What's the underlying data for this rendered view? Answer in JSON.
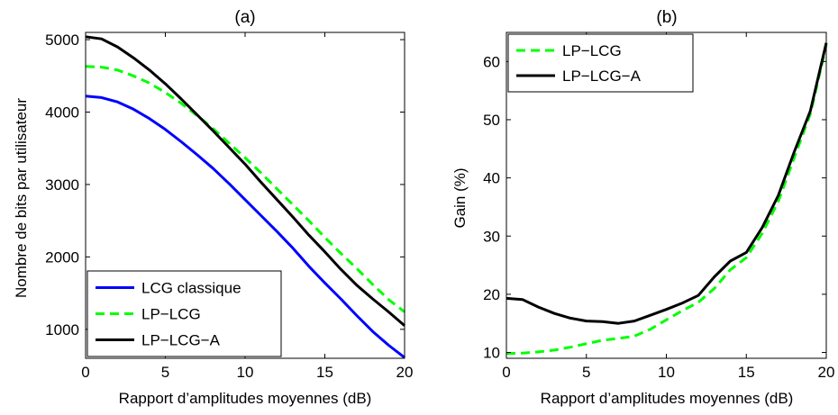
{
  "chart_data": [
    {
      "type": "line",
      "title": "(a)",
      "xlabel": "Rapport d’amplitudes moyennes (dB)",
      "ylabel": "Nombre de bits par utilisateur",
      "xlim": [
        0,
        20
      ],
      "ylim": [
        600,
        5100
      ],
      "xticks": [
        0,
        5,
        10,
        15,
        20
      ],
      "yticks": [
        1000,
        2000,
        3000,
        4000,
        5000
      ],
      "grid": false,
      "legend_position": "bottom-left",
      "x": [
        0,
        1,
        2,
        3,
        4,
        5,
        6,
        7,
        8,
        9,
        10,
        11,
        12,
        13,
        14,
        15,
        16,
        17,
        18,
        19,
        20
      ],
      "series": [
        {
          "name": "LCG classique",
          "color": "#0000ff",
          "dash": "solid",
          "values": [
            4220,
            4200,
            4140,
            4040,
            3910,
            3760,
            3590,
            3410,
            3220,
            3010,
            2790,
            2570,
            2350,
            2120,
            1870,
            1640,
            1420,
            1190,
            970,
            780,
            610
          ]
        },
        {
          "name": "LP−LCG",
          "color": "#00ff00",
          "dash": "dashed",
          "values": [
            4630,
            4620,
            4580,
            4500,
            4400,
            4270,
            4120,
            3950,
            3770,
            3570,
            3370,
            3160,
            2940,
            2720,
            2500,
            2270,
            2050,
            1840,
            1620,
            1410,
            1240
          ]
        },
        {
          "name": "LP−LCG−A",
          "color": "#000000",
          "dash": "solid",
          "values": [
            5040,
            5010,
            4900,
            4750,
            4580,
            4390,
            4180,
            3960,
            3740,
            3510,
            3280,
            3030,
            2790,
            2550,
            2300,
            2070,
            1830,
            1610,
            1420,
            1240,
            1050
          ]
        }
      ]
    },
    {
      "type": "line",
      "title": "(b)",
      "xlabel": "Rapport d’amplitudes moyennes (dB)",
      "ylabel": "Gain (%)",
      "xlim": [
        0,
        20
      ],
      "ylim": [
        9,
        65
      ],
      "xticks": [
        0,
        5,
        10,
        15,
        20
      ],
      "yticks": [
        10,
        20,
        30,
        40,
        50,
        60
      ],
      "grid": false,
      "legend_position": "top-left",
      "x": [
        0,
        1,
        2,
        3,
        4,
        5,
        6,
        7,
        8,
        9,
        10,
        11,
        12,
        13,
        14,
        15,
        16,
        17,
        18,
        19,
        20
      ],
      "series": [
        {
          "name": "LP−LCG",
          "color": "#00ff00",
          "dash": "dashed",
          "values": [
            9.8,
            9.9,
            10.1,
            10.4,
            10.9,
            11.5,
            12.1,
            12.4,
            12.8,
            14.0,
            15.6,
            17.2,
            18.6,
            21.0,
            24.2,
            26.3,
            30.5,
            36.0,
            43.5,
            51.0,
            62.8
          ]
        },
        {
          "name": "LP−LCG−A",
          "color": "#000000",
          "dash": "solid",
          "values": [
            19.3,
            19.1,
            17.8,
            16.7,
            15.9,
            15.4,
            15.3,
            15.0,
            15.4,
            16.4,
            17.4,
            18.5,
            19.8,
            23.0,
            25.7,
            27.2,
            31.5,
            37.0,
            44.5,
            51.5,
            63.2
          ]
        }
      ]
    }
  ]
}
